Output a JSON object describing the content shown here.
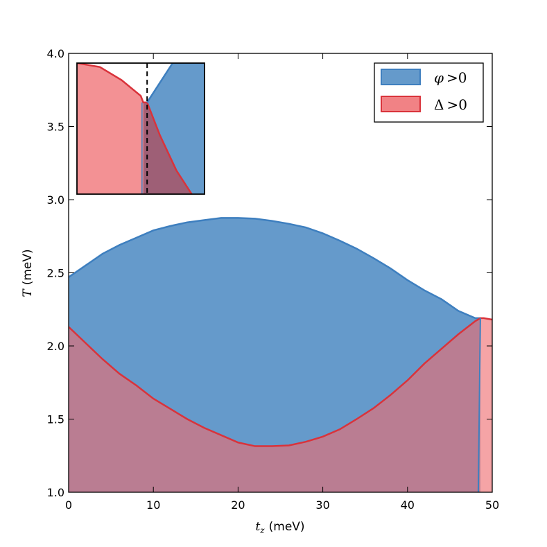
{
  "chart_data": {
    "type": "area",
    "xlabel": {
      "var": "t",
      "sub": "z",
      "unit": "(meV)"
    },
    "ylabel": {
      "var": "T",
      "unit": "(meV)"
    },
    "xlim": [
      0,
      50
    ],
    "ylim": [
      1.0,
      4.0
    ],
    "xticks": [
      "0",
      "10",
      "20",
      "30",
      "40",
      "50"
    ],
    "yticks": [
      "1.0",
      "1.5",
      "2.0",
      "2.5",
      "3.0",
      "3.5",
      "4.0"
    ],
    "grid": false,
    "legend": {
      "placement": "top-right",
      "entries": [
        {
          "symbol": "φ",
          "op": ">",
          "rhs": "0"
        },
        {
          "symbol": "Δ",
          "op": ">",
          "rhs": "0"
        }
      ]
    },
    "colors": {
      "phi_fill": "#4a88c2",
      "phi_edge": "#3e7fbf",
      "delta_fill": "#ef6c70",
      "delta_edge": "#d9333b",
      "overlap": "#a15d72"
    },
    "series": [
      {
        "key": "phi",
        "x": [
          0,
          2,
          4,
          6,
          8,
          10,
          12,
          14,
          16,
          18,
          20,
          22,
          24,
          26,
          28,
          30,
          32,
          34,
          36,
          38,
          40,
          42,
          44,
          46,
          48,
          48.6
        ],
        "y": [
          2.47,
          2.55,
          2.63,
          2.69,
          2.74,
          2.79,
          2.82,
          2.845,
          2.86,
          2.875,
          2.875,
          2.87,
          2.855,
          2.835,
          2.81,
          2.77,
          2.72,
          2.665,
          2.6,
          2.53,
          2.45,
          2.38,
          2.32,
          2.24,
          2.19,
          2.19
        ]
      },
      {
        "key": "delta",
        "x": [
          0,
          2,
          4,
          6,
          8,
          10,
          12,
          14,
          16,
          18,
          20,
          22,
          24,
          26,
          28,
          30,
          32,
          34,
          36,
          38,
          40,
          42,
          44,
          46,
          48,
          48.6,
          49,
          50
        ],
        "y": [
          2.13,
          2.02,
          1.91,
          1.81,
          1.73,
          1.64,
          1.57,
          1.5,
          1.44,
          1.39,
          1.34,
          1.315,
          1.315,
          1.32,
          1.345,
          1.38,
          1.43,
          1.5,
          1.575,
          1.665,
          1.765,
          1.88,
          1.98,
          2.08,
          2.17,
          2.19,
          2.19,
          2.18
        ]
      }
    ],
    "inset": {
      "placement": "top-left",
      "dashed_x": 0.55,
      "phi": {
        "x": [
          0.55,
          0.75,
          1.0
        ],
        "y": [
          0.7,
          1.0,
          1.0
        ],
        "bottom_boundary_x": [
          0.55,
          0.65,
          0.78,
          0.9
        ],
        "bottom_boundary_y": [
          0.7,
          0.45,
          0.18,
          0.0
        ]
      },
      "delta": {
        "x": [
          0.0,
          0.18,
          0.35,
          0.5,
          0.52
        ],
        "y": [
          1.0,
          0.97,
          0.87,
          0.75,
          0.7
        ]
      }
    }
  }
}
